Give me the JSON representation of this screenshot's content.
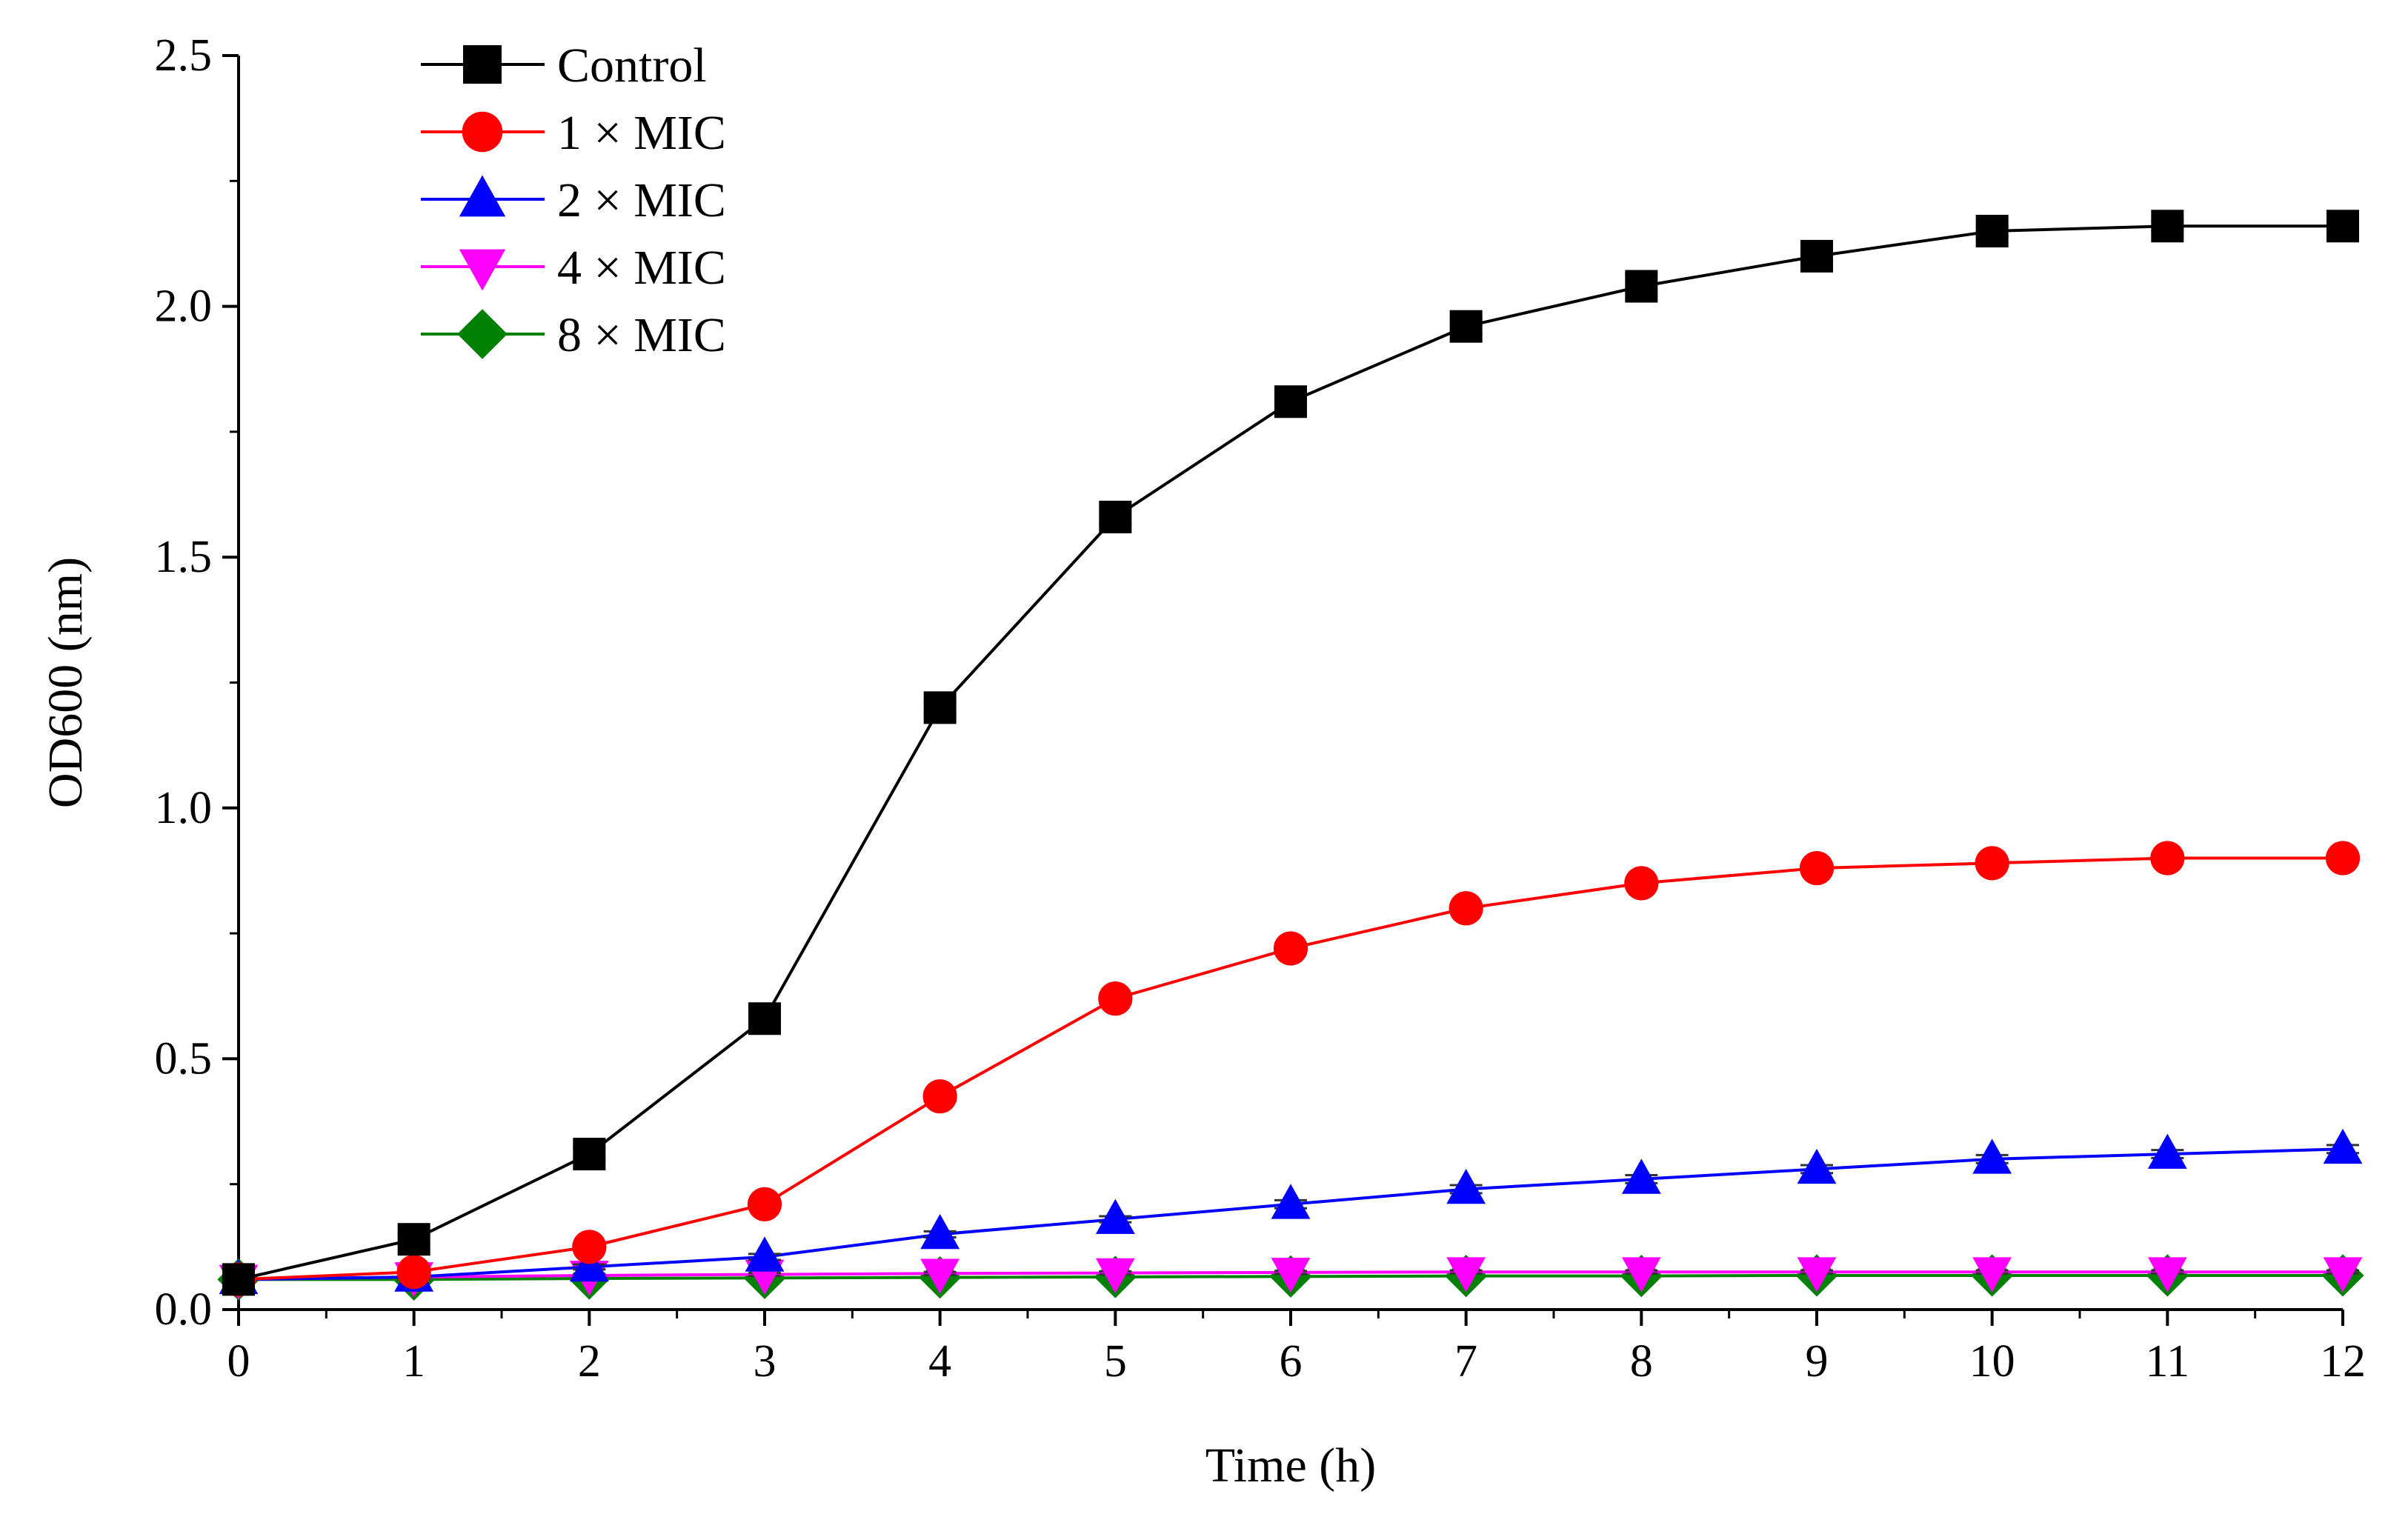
{
  "chart_data": {
    "type": "line",
    "title": "",
    "xlabel": "Time (h)",
    "ylabel": "OD600 (nm)",
    "xlim": [
      0,
      12
    ],
    "ylim": [
      0,
      2.5
    ],
    "x_ticks": [
      0,
      1,
      2,
      3,
      4,
      5,
      6,
      7,
      8,
      9,
      10,
      11,
      12
    ],
    "x_tick_labels": [
      "0",
      "1",
      "2",
      "3",
      "4",
      "5",
      "6",
      "7",
      "8",
      "9",
      "10",
      "11",
      "12"
    ],
    "y_ticks": [
      0.0,
      0.5,
      1.0,
      1.5,
      2.0,
      2.5
    ],
    "y_tick_labels": [
      "0.0",
      "0.5",
      "1.0",
      "1.5",
      "2.0",
      "2.5"
    ],
    "grid": false,
    "legend_position": "top-left",
    "x": [
      0,
      1,
      2,
      3,
      4,
      5,
      6,
      7,
      8,
      9,
      10,
      11,
      12
    ],
    "series": [
      {
        "name": "Control",
        "color": "#000000",
        "marker": "square",
        "values": [
          0.06,
          0.14,
          0.31,
          0.58,
          1.2,
          1.58,
          1.81,
          1.96,
          2.04,
          2.1,
          2.15,
          2.16,
          2.16
        ],
        "errors": [
          0.005,
          0.01,
          0.012,
          0.015,
          0.012,
          0.015,
          0.02,
          0.015,
          0.025,
          0.01,
          0.01,
          0.01,
          0.01
        ]
      },
      {
        "name": "1 × MIC",
        "color": "#ff0000",
        "marker": "circle",
        "values": [
          0.06,
          0.075,
          0.125,
          0.21,
          0.425,
          0.62,
          0.72,
          0.8,
          0.85,
          0.88,
          0.89,
          0.9,
          0.9
        ],
        "errors": [
          0.004,
          0.006,
          0.008,
          0.008,
          0.01,
          0.01,
          0.01,
          0.008,
          0.008,
          0.008,
          0.008,
          0.008,
          0.008
        ]
      },
      {
        "name": "2 × MIC",
        "color": "#0000ff",
        "marker": "triangle-up",
        "values": [
          0.06,
          0.065,
          0.085,
          0.105,
          0.15,
          0.18,
          0.21,
          0.24,
          0.26,
          0.28,
          0.3,
          0.31,
          0.32
        ],
        "errors": [
          0.004,
          0.005,
          0.005,
          0.006,
          0.006,
          0.006,
          0.008,
          0.008,
          0.008,
          0.008,
          0.008,
          0.008,
          0.008
        ]
      },
      {
        "name": "4 × MIC",
        "color": "#ff00ff",
        "marker": "triangle-down",
        "values": [
          0.06,
          0.065,
          0.068,
          0.07,
          0.072,
          0.073,
          0.074,
          0.075,
          0.075,
          0.075,
          0.075,
          0.075,
          0.075
        ],
        "errors": [
          0.003,
          0.003,
          0.003,
          0.003,
          0.003,
          0.003,
          0.003,
          0.003,
          0.003,
          0.003,
          0.003,
          0.003,
          0.003
        ]
      },
      {
        "name": "8 × MIC",
        "color": "#008000",
        "marker": "diamond",
        "values": [
          0.06,
          0.06,
          0.062,
          0.063,
          0.064,
          0.065,
          0.066,
          0.067,
          0.067,
          0.068,
          0.068,
          0.068,
          0.068
        ],
        "errors": [
          0.003,
          0.003,
          0.003,
          0.003,
          0.003,
          0.003,
          0.003,
          0.003,
          0.003,
          0.003,
          0.003,
          0.003,
          0.003
        ]
      }
    ]
  }
}
